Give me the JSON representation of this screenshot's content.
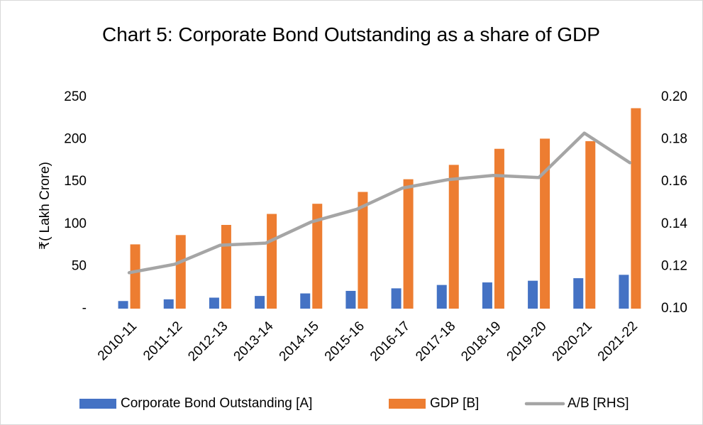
{
  "chart_data": {
    "type": "bar",
    "title": "Chart 5: Corporate Bond Outstanding as a share of GDP",
    "y_label": "₹( Lakh Crore)",
    "categories": [
      "2010-11",
      "2011-12",
      "2012-13",
      "2013-14",
      "2014-15",
      "2015-16",
      "2016-17",
      "2017-18",
      "2018-19",
      "2019-20",
      "2020-21",
      "2021-22"
    ],
    "series": [
      {
        "name": "Corporate Bond Outstanding [A]",
        "type": "bar",
        "color": "#4472c4",
        "values": [
          9,
          11,
          13,
          15,
          18,
          21,
          24,
          28,
          31,
          33,
          36,
          40
        ]
      },
      {
        "name": "GDP [B]",
        "type": "bar",
        "color": "#ed7d31",
        "values": [
          76,
          87,
          99,
          112,
          124,
          138,
          153,
          170,
          189,
          201,
          198,
          237
        ]
      },
      {
        "name": "A/B [RHS]",
        "type": "line",
        "axis": "y2",
        "color": "#a5a5a5",
        "values": [
          0.117,
          0.121,
          0.13,
          0.131,
          0.141,
          0.147,
          0.157,
          0.161,
          0.163,
          0.162,
          0.183,
          0.169
        ]
      }
    ],
    "ylim": [
      0,
      250
    ],
    "yticks": [
      {
        "value": 0,
        "label": "-"
      },
      50,
      100,
      150,
      200,
      250
    ],
    "y2lim": [
      0.1,
      0.2
    ],
    "y2ticks": [
      {
        "value": 0.1,
        "label": "0.10"
      },
      0.12,
      0.14,
      0.16,
      0.18,
      {
        "value": 0.2,
        "label": "0.20"
      }
    ],
    "legend": "bottom"
  }
}
